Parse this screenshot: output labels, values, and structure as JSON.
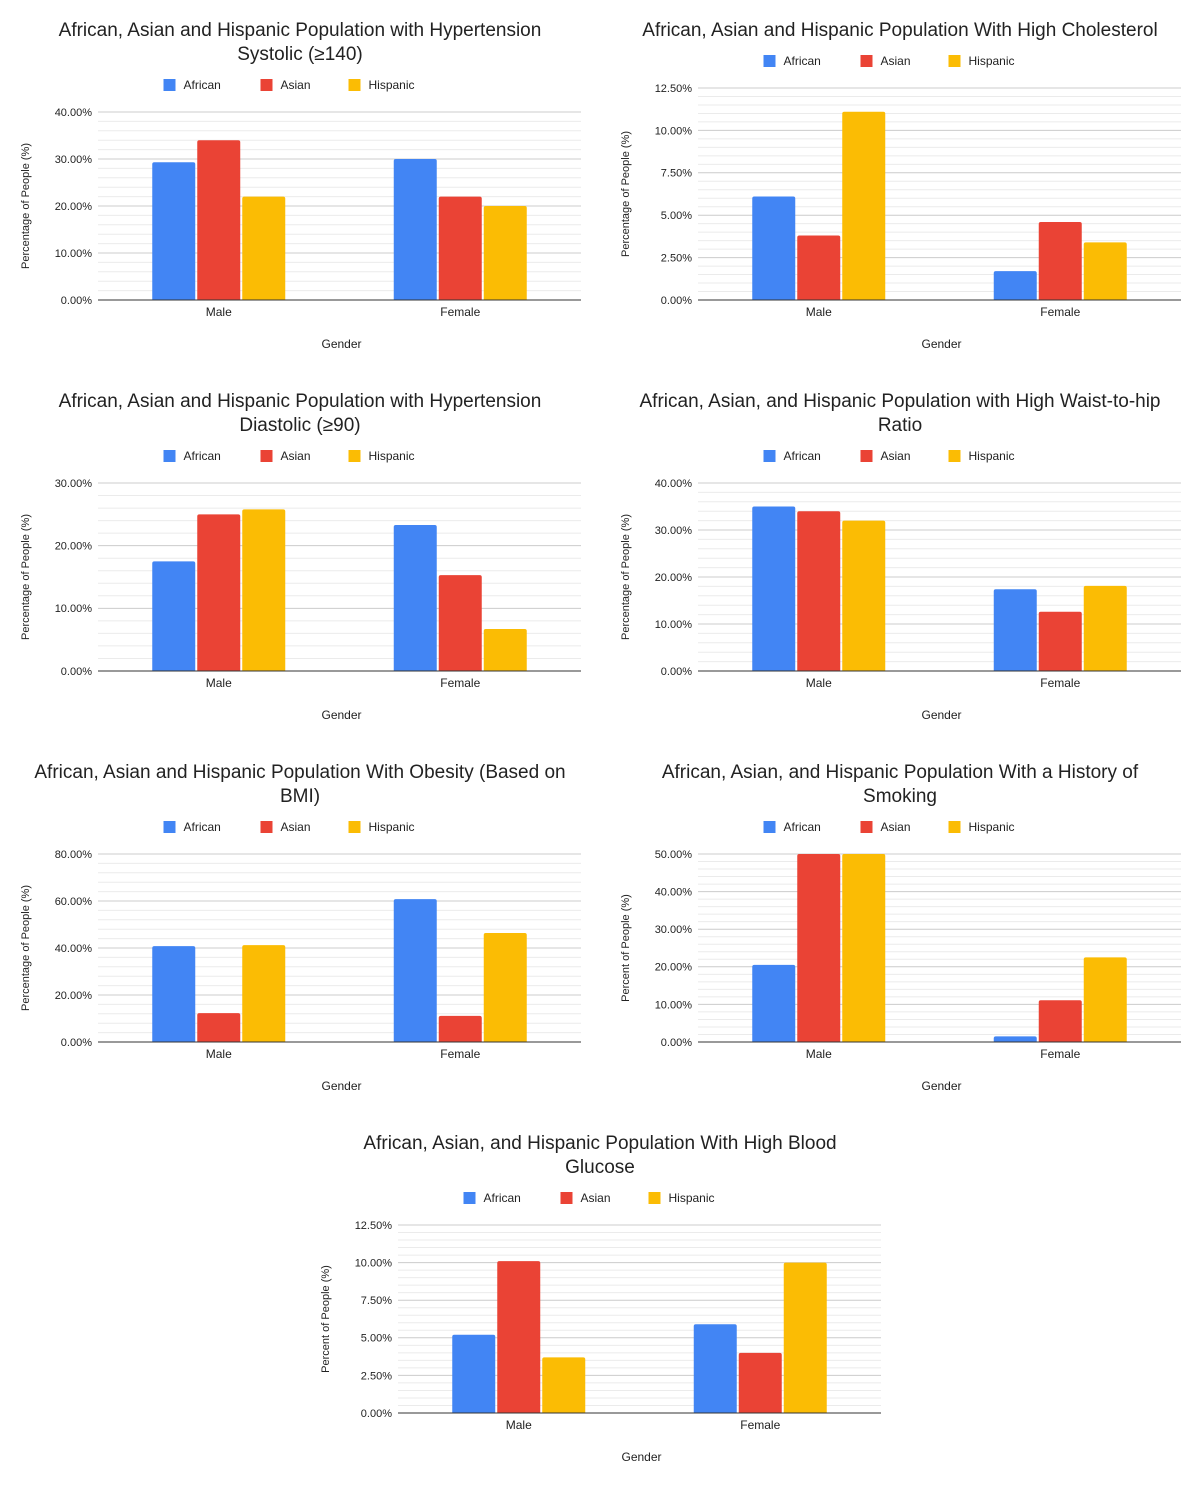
{
  "colors": {
    "African": "#4285F4",
    "Asian": "#EA4335",
    "Hispanic": "#FBBC04",
    "grid_major": "#cccccc",
    "grid_minor": "#ebebeb",
    "axis": "#333333",
    "text": "#222222"
  },
  "chart_data": [
    {
      "type": "bar",
      "title_lines": [
        "African, Asian and Hispanic Population with Hypertension",
        "Systolic (≥140)"
      ],
      "categories": [
        "Male",
        "Female"
      ],
      "series": [
        {
          "name": "African",
          "values": [
            29.3,
            30.0
          ]
        },
        {
          "name": "Asian",
          "values": [
            34.0,
            22.0
          ]
        },
        {
          "name": "Hispanic",
          "values": [
            22.0,
            20.0
          ]
        }
      ],
      "ylim": [
        0,
        40
      ],
      "yticks": [
        0,
        10,
        20,
        30,
        40
      ],
      "ytick_labels": [
        "0.00%",
        "10.00%",
        "20.00%",
        "30.00%",
        "40.00%"
      ],
      "minor_per_major": 5,
      "xlabel": "Gender",
      "ylabel": "Percentage of People (%)",
      "legend": "top"
    },
    {
      "type": "bar",
      "title_lines": [
        "African, Asian and Hispanic Population With High Cholesterol"
      ],
      "categories": [
        "Male",
        "Female"
      ],
      "series": [
        {
          "name": "African",
          "values": [
            6.1,
            1.7
          ]
        },
        {
          "name": "Asian",
          "values": [
            3.8,
            4.6
          ]
        },
        {
          "name": "Hispanic",
          "values": [
            11.1,
            3.4
          ]
        }
      ],
      "ylim": [
        0,
        12.5
      ],
      "yticks": [
        0,
        2.5,
        5,
        7.5,
        10,
        12.5
      ],
      "ytick_labels": [
        "0.00%",
        "2.50%",
        "5.00%",
        "7.50%",
        "10.00%",
        "12.50%"
      ],
      "minor_per_major": 5,
      "xlabel": "Gender",
      "ylabel": "Percentage of People (%)",
      "legend": "top"
    },
    {
      "type": "bar",
      "title_lines": [
        "African, Asian and Hispanic Population with Hypertension",
        "Diastolic (≥90)"
      ],
      "categories": [
        "Male",
        "Female"
      ],
      "series": [
        {
          "name": "African",
          "values": [
            17.5,
            23.3
          ]
        },
        {
          "name": "Asian",
          "values": [
            25.0,
            15.3
          ]
        },
        {
          "name": "Hispanic",
          "values": [
            25.8,
            6.7
          ]
        }
      ],
      "ylim": [
        0,
        30
      ],
      "yticks": [
        0,
        10,
        20,
        30
      ],
      "ytick_labels": [
        "0.00%",
        "10.00%",
        "20.00%",
        "30.00%"
      ],
      "minor_per_major": 5,
      "xlabel": "Gender",
      "ylabel": "Percentage of People (%)",
      "legend": "top"
    },
    {
      "type": "bar",
      "title_lines": [
        "African, Asian, and Hispanic Population with High Waist-to-hip",
        "Ratio"
      ],
      "categories": [
        "Male",
        "Female"
      ],
      "series": [
        {
          "name": "African",
          "values": [
            35.0,
            17.4
          ]
        },
        {
          "name": "Asian",
          "values": [
            34.0,
            12.6
          ]
        },
        {
          "name": "Hispanic",
          "values": [
            32.0,
            18.1
          ]
        }
      ],
      "ylim": [
        0,
        40
      ],
      "yticks": [
        0,
        10,
        20,
        30,
        40
      ],
      "ytick_labels": [
        "0.00%",
        "10.00%",
        "20.00%",
        "30.00%",
        "40.00%"
      ],
      "minor_per_major": 5,
      "xlabel": "Gender",
      "ylabel": "Percentage of People (%)",
      "legend": "top"
    },
    {
      "type": "bar",
      "title_lines": [
        "African, Asian and Hispanic Population With Obesity (Based on",
        "BMI)"
      ],
      "categories": [
        "Male",
        "Female"
      ],
      "series": [
        {
          "name": "African",
          "values": [
            40.8,
            60.8
          ]
        },
        {
          "name": "Asian",
          "values": [
            12.3,
            11.1
          ]
        },
        {
          "name": "Hispanic",
          "values": [
            41.2,
            46.4
          ]
        }
      ],
      "ylim": [
        0,
        80
      ],
      "yticks": [
        0,
        20,
        40,
        60,
        80
      ],
      "ytick_labels": [
        "0.00%",
        "20.00%",
        "40.00%",
        "60.00%",
        "80.00%"
      ],
      "minor_per_major": 5,
      "xlabel": "Gender",
      "ylabel": "Percentage of People (%)",
      "legend": "top"
    },
    {
      "type": "bar",
      "title_lines": [
        "African, Asian, and Hispanic Population With a History of",
        "Smoking"
      ],
      "categories": [
        "Male",
        "Female"
      ],
      "series": [
        {
          "name": "African",
          "values": [
            20.5,
            1.5
          ]
        },
        {
          "name": "Asian",
          "values": [
            50.0,
            11.1
          ]
        },
        {
          "name": "Hispanic",
          "values": [
            50.0,
            22.5
          ]
        }
      ],
      "ylim": [
        0,
        50
      ],
      "yticks": [
        0,
        10,
        20,
        30,
        40,
        50
      ],
      "ytick_labels": [
        "0.00%",
        "10.00%",
        "20.00%",
        "30.00%",
        "40.00%",
        "50.00%"
      ],
      "minor_per_major": 5,
      "xlabel": "Gender",
      "ylabel": "Percent of People (%)",
      "legend": "top"
    },
    {
      "type": "bar",
      "title_lines": [
        "African, Asian, and Hispanic Population With High Blood",
        "Glucose"
      ],
      "categories": [
        "Male",
        "Female"
      ],
      "series": [
        {
          "name": "African",
          "values": [
            5.2,
            5.9
          ]
        },
        {
          "name": "Asian",
          "values": [
            10.1,
            4.0
          ]
        },
        {
          "name": "Hispanic",
          "values": [
            3.7,
            10.0
          ]
        }
      ],
      "ylim": [
        0,
        12.5
      ],
      "yticks": [
        0,
        2.5,
        5,
        7.5,
        10,
        12.5
      ],
      "ytick_labels": [
        "0.00%",
        "2.50%",
        "5.00%",
        "7.50%",
        "10.00%",
        "12.50%"
      ],
      "minor_per_major": 5,
      "xlabel": "Gender",
      "ylabel": "Percent of People (%)",
      "legend": "top"
    }
  ]
}
